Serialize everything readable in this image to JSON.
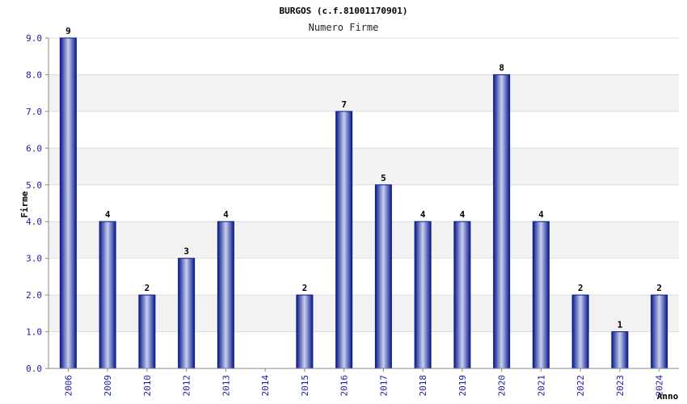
{
  "chart_data": {
    "type": "bar",
    "title": "BURGOS (c.f.81001170901)",
    "subtitle": "Numero Firme",
    "xlabel": "Anno",
    "ylabel": "Firme",
    "categories": [
      "2006",
      "2009",
      "2010",
      "2012",
      "2013",
      "2014",
      "2015",
      "2016",
      "2017",
      "2018",
      "2019",
      "2020",
      "2021",
      "2022",
      "2023",
      "2024"
    ],
    "values": [
      9,
      4,
      2,
      3,
      4,
      0,
      2,
      7,
      5,
      4,
      4,
      8,
      4,
      2,
      1,
      2
    ],
    "data_labels": [
      "9",
      "4",
      "2",
      "3",
      "4",
      "",
      "2",
      "7",
      "5",
      "4",
      "4",
      "8",
      "4",
      "2",
      "1",
      "2"
    ],
    "y_ticks": [
      "0.0",
      "1.0",
      "2.0",
      "3.0",
      "4.0",
      "5.0",
      "6.0",
      "7.0",
      "8.0",
      "9.0"
    ],
    "ylim": [
      0,
      9
    ],
    "grid": true,
    "colors": {
      "bar_dark": "#0a1a8a",
      "bar_light": "#c8d0f0",
      "band": "#f2f2f2",
      "tick_text": "#1a1aa6"
    }
  }
}
